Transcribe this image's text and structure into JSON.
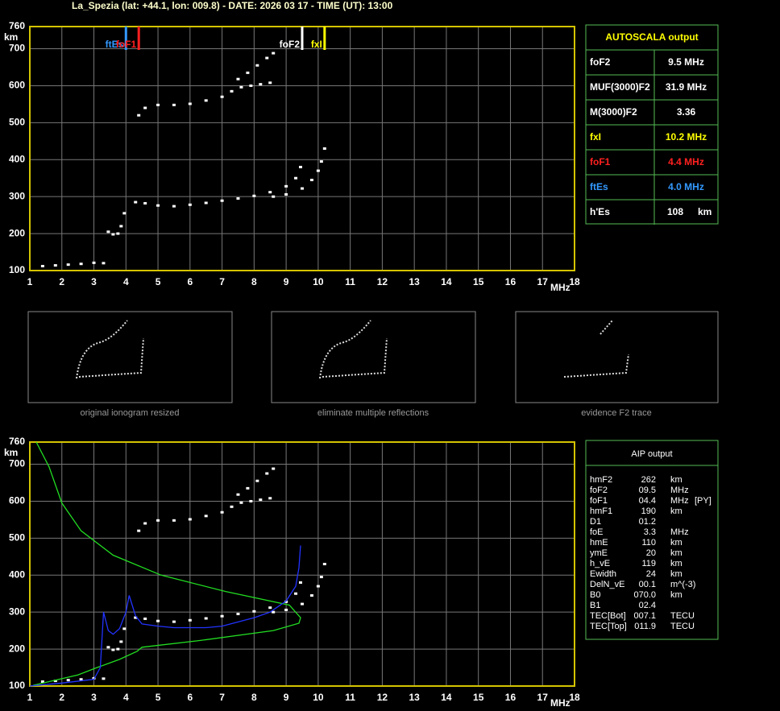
{
  "header": {
    "title": "La_Spezia (lat: +44.1, lon: 009.8) - DATE: 2026 03 17 - TIME (UT): 13:00"
  },
  "chart_data": [
    {
      "type": "ionogram",
      "x_label": "MHz",
      "y_label": "km",
      "xlim": [
        1,
        18
      ],
      "ylim": [
        100,
        760
      ],
      "xticks": [
        1,
        2,
        3,
        4,
        5,
        6,
        7,
        8,
        9,
        10,
        11,
        12,
        13,
        14,
        15,
        16,
        17,
        18
      ],
      "yticks": [
        100,
        200,
        300,
        400,
        500,
        600,
        700,
        760
      ],
      "grid": true,
      "markers": [
        {
          "label": "ftEs",
          "value": 4.0,
          "color": "#3399ff"
        },
        {
          "label": "foF1",
          "value": 4.4,
          "color": "#ff2020"
        },
        {
          "label": "foF2",
          "value": 9.5,
          "color": "#ffffff"
        },
        {
          "label": "fxI",
          "value": 10.2,
          "color": "#ffff00"
        }
      ],
      "series": [
        {
          "color": "#ffffff",
          "mode": "points",
          "x": [
            1.4,
            1.8,
            2.2,
            2.6,
            3.0,
            3.3
          ],
          "values": [
            112,
            114,
            116,
            118,
            121,
            120
          ]
        },
        {
          "color": "#ffffff",
          "mode": "points",
          "x": [
            3.45,
            3.6,
            3.75,
            3.85,
            3.95
          ],
          "values": [
            205,
            198,
            200,
            220,
            255
          ]
        },
        {
          "color": "#ffffff",
          "mode": "points",
          "x": [
            4.3,
            4.6,
            5.0,
            5.5,
            6.0,
            6.5,
            7.0,
            7.5,
            8.0,
            8.5,
            9.0,
            9.3,
            9.45
          ],
          "values": [
            285,
            282,
            276,
            274,
            278,
            283,
            289,
            295,
            302,
            312,
            328,
            350,
            380
          ]
        },
        {
          "color": "#ffffff",
          "mode": "points",
          "x": [
            8.6,
            9.0,
            9.5,
            9.8,
            10.0,
            10.1,
            10.2
          ],
          "values": [
            300,
            306,
            322,
            345,
            370,
            395,
            430
          ]
        },
        {
          "color": "#ffffff",
          "mode": "points",
          "x": [
            4.4,
            4.6,
            5.0,
            5.5,
            6.0,
            6.5,
            7.0,
            7.3
          ],
          "values": [
            520,
            540,
            548,
            548,
            551,
            560,
            570,
            585
          ]
        },
        {
          "color": "#ffffff",
          "mode": "points",
          "x": [
            7.6,
            7.9,
            8.2,
            8.5
          ],
          "values": [
            596,
            600,
            604,
            608
          ]
        },
        {
          "color": "#ffffff",
          "mode": "points",
          "x": [
            7.5,
            7.8,
            8.1,
            8.4,
            8.6
          ],
          "values": [
            618,
            635,
            655,
            675,
            688
          ]
        }
      ]
    },
    {
      "type": "ionogram",
      "x_label": "MHz",
      "y_label": "km",
      "xlim": [
        1,
        18
      ],
      "ylim": [
        100,
        760
      ],
      "xticks": [
        1,
        2,
        3,
        4,
        5,
        6,
        7,
        8,
        9,
        10,
        11,
        12,
        13,
        14,
        15,
        16,
        17,
        18
      ],
      "yticks": [
        100,
        200,
        300,
        400,
        500,
        600,
        700,
        760
      ],
      "grid": true,
      "series": [
        {
          "color": "#ffffff",
          "mode": "points",
          "x": [
            1.4,
            1.8,
            2.2,
            2.6,
            3.0,
            3.3
          ],
          "values": [
            112,
            114,
            116,
            118,
            121,
            120
          ]
        },
        {
          "color": "#ffffff",
          "mode": "points",
          "x": [
            3.45,
            3.6,
            3.75,
            3.85,
            3.95
          ],
          "values": [
            205,
            198,
            200,
            220,
            255
          ]
        },
        {
          "color": "#ffffff",
          "mode": "points",
          "x": [
            4.3,
            4.6,
            5.0,
            5.5,
            6.0,
            6.5,
            7.0,
            7.5,
            8.0,
            8.5,
            9.0,
            9.3,
            9.45
          ],
          "values": [
            285,
            282,
            276,
            274,
            278,
            283,
            289,
            295,
            302,
            312,
            328,
            350,
            380
          ]
        },
        {
          "color": "#ffffff",
          "mode": "points",
          "x": [
            8.6,
            9.0,
            9.5,
            9.8,
            10.0,
            10.1,
            10.2
          ],
          "values": [
            300,
            306,
            322,
            345,
            370,
            395,
            430
          ]
        },
        {
          "color": "#ffffff",
          "mode": "points",
          "x": [
            4.4,
            4.6,
            5.0,
            5.5,
            6.0,
            6.5,
            7.0,
            7.3
          ],
          "values": [
            520,
            540,
            548,
            548,
            551,
            560,
            570,
            585
          ]
        },
        {
          "color": "#ffffff",
          "mode": "points",
          "x": [
            7.6,
            7.9,
            8.2,
            8.5
          ],
          "values": [
            596,
            600,
            604,
            608
          ]
        },
        {
          "color": "#ffffff",
          "mode": "points",
          "x": [
            7.5,
            7.8,
            8.1,
            8.4,
            8.6
          ],
          "values": [
            618,
            635,
            655,
            675,
            688
          ]
        },
        {
          "color": "#22dd22",
          "mode": "line",
          "x": [
            1.2,
            1.6,
            2.0,
            2.6,
            3.6,
            5.1,
            7.1,
            9.1,
            9.45,
            9.4,
            8.6,
            6.3,
            4.5,
            4.35,
            3.8,
            3.1,
            2.5,
            1.1
          ],
          "values": [
            760,
            693,
            595,
            520,
            454,
            400,
            356,
            319,
            285,
            270,
            250,
            223,
            205,
            194,
            172,
            150,
            130,
            102
          ]
        },
        {
          "color": "#2233ff",
          "mode": "line",
          "x": [
            1.0,
            2.0,
            3.0,
            3.2,
            3.3,
            3.45,
            3.6,
            3.8,
            4.0,
            4.1,
            4.3,
            4.5,
            5.0,
            5.5,
            6.5,
            7.0,
            8.0,
            8.5,
            9.0,
            9.3,
            9.4,
            9.45
          ],
          "values": [
            100,
            108,
            118,
            150,
            300,
            250,
            240,
            255,
            300,
            345,
            290,
            268,
            262,
            258,
            258,
            262,
            285,
            300,
            330,
            370,
            420,
            480
          ]
        }
      ]
    }
  ],
  "autoscala": {
    "title": "AUTOSCALA output",
    "rows": [
      {
        "name": "foF2",
        "value": "9.5 MHz",
        "color": "#ffffff"
      },
      {
        "name": "MUF(3000)F2",
        "value": "31.9 MHz",
        "color": "#ffffff"
      },
      {
        "name": "M(3000)F2",
        "value": "3.36",
        "color": "#ffffff"
      },
      {
        "name": "fxI",
        "value": "10.2 MHz",
        "color": "#ffff00"
      },
      {
        "name": "foF1",
        "value": "4.4 MHz",
        "color": "#ff2020"
      },
      {
        "name": "ftEs",
        "value": "4.0 MHz",
        "color": "#3399ff"
      },
      {
        "name": "h'Es",
        "value": "108",
        "unit": "km",
        "color": "#ffffff"
      }
    ]
  },
  "thumbnails": [
    "original ionogram resized",
    "eliminate multiple reflections",
    "evidence F2 trace"
  ],
  "aip": {
    "title": "AIP output",
    "rows": [
      [
        "hmF2",
        "262",
        "km"
      ],
      [
        "foF2",
        "09.5",
        "MHz"
      ],
      [
        "foF1",
        "04.4",
        "MHz",
        "[PY]"
      ],
      [
        "hmF1",
        "190",
        "km"
      ],
      [
        "D1",
        "01.2"
      ],
      [
        "foE",
        "3.3",
        "MHz"
      ],
      [
        "hmE",
        "110",
        "km"
      ],
      [
        "ymE",
        "20",
        "km"
      ],
      [
        "h_vE",
        "119",
        "km"
      ],
      [
        "Ewidth",
        "24",
        "km"
      ],
      [
        "DelN_vE",
        "00.1",
        "m^(-3)"
      ],
      [
        "B0",
        "070.0",
        "km"
      ],
      [
        "B1",
        "02.4"
      ],
      [
        "TEC[Bot]",
        "007.1",
        "TECU"
      ],
      [
        "TEC[Top]",
        "011.9",
        "TECU"
      ]
    ]
  }
}
